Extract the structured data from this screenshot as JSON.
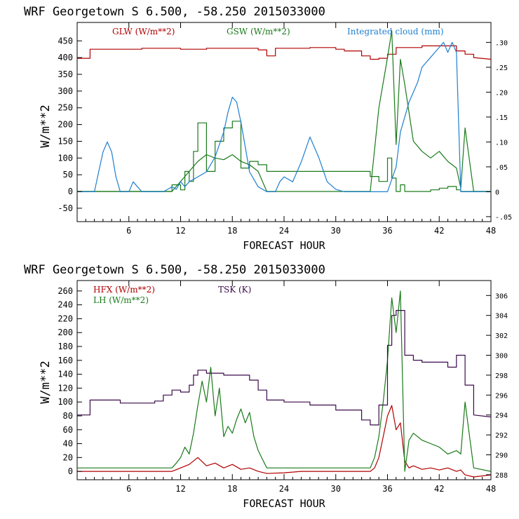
{
  "colors": {
    "red": "#b00000",
    "green": "#1a7a1a",
    "blue": "#1e7fd0",
    "purple": "#3a0a4a",
    "axis": "#000000"
  },
  "chart_data": [
    {
      "type": "line",
      "title": "WRF   Georgetown S   6.500, -58.250  2015033000",
      "xlabel": "FORECAST HOUR",
      "ylabel": "W/m**2",
      "xlim": [
        0,
        48
      ],
      "xticks": [
        "6",
        "12",
        "18",
        "24",
        "30",
        "36",
        "42",
        "48"
      ],
      "ylim": [
        -90,
        505
      ],
      "yticks": [
        "450",
        "400",
        "350",
        "300",
        "250",
        "200",
        "150",
        "100",
        "50",
        "0",
        "-50"
      ],
      "y2lim": [
        -0.06,
        0.34
      ],
      "y2ticks": [
        ".30",
        ".25",
        ".20",
        ".15",
        ".10",
        ".05",
        "0",
        "-.05"
      ],
      "legend": [
        "GLW (W/m**2)",
        "GSW (W/m**2)",
        "Integrated cloud (mm)"
      ],
      "series": [
        {
          "name": "GLW (W/m**2)",
          "color": "red",
          "axis": "left",
          "x": [
            0,
            1.5,
            1.5,
            7.5,
            7.5,
            12,
            12,
            15,
            15,
            18,
            18,
            21,
            21,
            22,
            22,
            23,
            23,
            27,
            27,
            30,
            30,
            31,
            31,
            33,
            33,
            34,
            34,
            35,
            35,
            36,
            36,
            37,
            37,
            40,
            40,
            44,
            44,
            45,
            45,
            46,
            46,
            48
          ],
          "y": [
            398,
            398,
            425,
            425,
            428,
            428,
            425,
            425,
            428,
            428,
            428,
            428,
            423,
            423,
            405,
            405,
            428,
            428,
            430,
            430,
            425,
            425,
            420,
            420,
            405,
            405,
            395,
            395,
            398,
            398,
            410,
            410,
            430,
            430,
            435,
            435,
            420,
            420,
            410,
            410,
            400,
            395
          ]
        },
        {
          "name": "GSW (W/m**2)",
          "color": "green",
          "axis": "left",
          "x": [
            0,
            11,
            11,
            12,
            12,
            12.5,
            12.5,
            13,
            13,
            13.5,
            13.5,
            14,
            14,
            15,
            15,
            16,
            16,
            17,
            17,
            18,
            18,
            19,
            19,
            20,
            20,
            21,
            21,
            22,
            22,
            34,
            34,
            35,
            35,
            36,
            36,
            36.5,
            36.5,
            37,
            37,
            37.5,
            37.5,
            38,
            38,
            39,
            39,
            40,
            40,
            41,
            41,
            42,
            42,
            43,
            43,
            44,
            44,
            44.5,
            44.5,
            45,
            45,
            46,
            46,
            48
          ],
          "y": [
            0,
            0,
            20,
            20,
            5,
            5,
            60,
            60,
            30,
            30,
            120,
            120,
            205,
            205,
            60,
            60,
            150,
            150,
            190,
            190,
            210,
            210,
            70,
            70,
            90,
            90,
            80,
            80,
            60,
            60,
            45,
            45,
            30,
            30,
            100,
            100,
            40,
            40,
            0,
            0,
            20,
            20,
            0,
            0,
            0,
            0,
            0,
            0,
            5,
            5,
            10,
            10,
            15,
            15,
            5,
            5,
            0,
            0,
            0,
            0,
            0,
            0
          ]
        },
        {
          "name": "GSW (W/m**2)",
          "color": "green",
          "axis": "left",
          "x": [
            0,
            11,
            12,
            13,
            14,
            15,
            16,
            17,
            18,
            19,
            20,
            21,
            22,
            34,
            35,
            36,
            36.5,
            37,
            37.5,
            38,
            39,
            40,
            41,
            42,
            43,
            44,
            44.5,
            45,
            46,
            48
          ],
          "y": [
            0,
            0,
            30,
            60,
            90,
            110,
            100,
            95,
            110,
            90,
            80,
            60,
            0,
            0,
            250,
            400,
            480,
            140,
            395,
            320,
            150,
            120,
            100,
            120,
            90,
            70,
            10,
            190,
            0,
            0
          ]
        },
        {
          "name": "Integrated cloud (mm)",
          "color": "blue",
          "axis": "right",
          "x": [
            0,
            2,
            2.5,
            3,
            3.5,
            4,
            4.5,
            5,
            6,
            6.5,
            7,
            7.5,
            8,
            9,
            10,
            10.5,
            11,
            11.5,
            12,
            12.5,
            13,
            14,
            15,
            16,
            17,
            17.5,
            18,
            18.5,
            19,
            19.5,
            20,
            21,
            22,
            23,
            23.5,
            24,
            25,
            26,
            27,
            28,
            29,
            30,
            31,
            36,
            37,
            37.5,
            38,
            38.5,
            39,
            39.5,
            40,
            41,
            41.5,
            42,
            42.5,
            43,
            43.5,
            44,
            44.5,
            48
          ],
          "y": [
            0,
            0,
            0.04,
            0.08,
            0.1,
            0.08,
            0.03,
            0,
            0,
            0.02,
            0.01,
            0,
            0,
            0,
            0,
            0.005,
            0.01,
            0.005,
            0.02,
            0.01,
            0.02,
            0.03,
            0.04,
            0.07,
            0.12,
            0.16,
            0.19,
            0.18,
            0.14,
            0.09,
            0.04,
            0.01,
            0,
            0,
            0.02,
            0.03,
            0.02,
            0.06,
            0.11,
            0.07,
            0.02,
            0.005,
            0,
            0,
            0.05,
            0.12,
            0.15,
            0.18,
            0.2,
            0.22,
            0.25,
            0.27,
            0.28,
            0.29,
            0.3,
            0.28,
            0.3,
            0.28,
            0,
            0
          ]
        }
      ]
    },
    {
      "type": "line",
      "title": "WRF   Georgetown S   6.500, -58.250  2015033000",
      "xlabel": "FORECAST HOUR",
      "ylabel": "W/m**2",
      "xlim": [
        0,
        48
      ],
      "xticks": [
        "6",
        "12",
        "18",
        "24",
        "30",
        "36",
        "42",
        "48"
      ],
      "ylim": [
        -12,
        275
      ],
      "yticks": [
        "260",
        "240",
        "220",
        "200",
        "180",
        "160",
        "140",
        "120",
        "100",
        "80",
        "60",
        "40",
        "20",
        "0"
      ],
      "y2lim": [
        287.5,
        307.5
      ],
      "y2ticks": [
        "306",
        "304",
        "302",
        "300",
        "298",
        "296",
        "294",
        "292",
        "290",
        "288"
      ],
      "legend": [
        "HFX (W/m**2)",
        "LH  (W/m**2)",
        "TSK (K)"
      ],
      "series": [
        {
          "name": "HFX (W/m**2)",
          "color": "red",
          "axis": "left",
          "x": [
            0,
            11,
            12,
            13,
            14,
            15,
            16,
            17,
            18,
            19,
            20,
            21,
            22,
            24,
            26,
            34,
            34.5,
            35,
            35.5,
            36,
            36.5,
            37,
            37.5,
            38,
            38.5,
            39,
            40,
            41,
            42,
            43,
            44,
            44.5,
            45,
            46,
            48
          ],
          "y": [
            0,
            0,
            5,
            10,
            20,
            8,
            12,
            5,
            10,
            3,
            5,
            0,
            -3,
            -2,
            0,
            0,
            5,
            20,
            50,
            80,
            95,
            60,
            70,
            15,
            5,
            8,
            3,
            5,
            2,
            5,
            0,
            2,
            -5,
            -8,
            -5
          ]
        },
        {
          "name": "LH  (W/m**2)",
          "color": "green",
          "axis": "left",
          "x": [
            0,
            11,
            11.5,
            12,
            12.5,
            13,
            13.5,
            14,
            14.5,
            15,
            15.5,
            16,
            16.5,
            17,
            17.5,
            18,
            18.5,
            19,
            19.5,
            20,
            20.5,
            21,
            22,
            24,
            26,
            28,
            30,
            34,
            34.5,
            35,
            35.5,
            36,
            36.5,
            37,
            37.5,
            38,
            38.5,
            39,
            40,
            41,
            42,
            43,
            44,
            44.5,
            45,
            46,
            48
          ],
          "y": [
            5,
            5,
            12,
            20,
            35,
            25,
            55,
            95,
            130,
            100,
            150,
            80,
            120,
            50,
            65,
            55,
            75,
            90,
            70,
            85,
            50,
            30,
            5,
            5,
            5,
            5,
            5,
            5,
            20,
            50,
            100,
            160,
            250,
            200,
            260,
            0,
            45,
            55,
            45,
            40,
            35,
            25,
            30,
            25,
            100,
            5,
            0
          ]
        },
        {
          "name": "TSK (K)",
          "color": "purple",
          "axis": "right",
          "x": [
            0,
            1.5,
            1.5,
            5,
            5,
            9,
            9,
            10,
            10,
            11,
            11,
            12,
            12,
            13,
            13,
            13.5,
            13.5,
            14,
            14,
            15,
            15,
            17,
            17,
            20,
            20,
            21,
            21,
            22,
            22,
            24,
            24,
            27,
            27,
            30,
            30,
            33,
            33,
            34,
            34,
            35,
            35,
            36,
            36,
            36.5,
            36.5,
            37,
            37,
            38,
            38,
            39,
            39,
            40,
            40,
            43,
            43,
            44,
            44,
            45,
            45,
            46,
            46,
            48
          ],
          "y": [
            294,
            294,
            295.5,
            295.5,
            295.2,
            295.2,
            295.4,
            295.4,
            296,
            296,
            296.5,
            296.5,
            296.3,
            296.3,
            297,
            297,
            298,
            298,
            298.5,
            298.5,
            298.2,
            298.2,
            298,
            298,
            297.5,
            297.5,
            296.5,
            296.5,
            295.5,
            295.5,
            295.3,
            295.3,
            295,
            295,
            294.5,
            294.5,
            293.5,
            293.5,
            293,
            293,
            295,
            295,
            301,
            301,
            304,
            304,
            304.5,
            304.5,
            300,
            300,
            299.5,
            299.5,
            299.3,
            299.3,
            298.8,
            298.8,
            300,
            300,
            297,
            297,
            294,
            293.8
          ]
        }
      ]
    }
  ]
}
